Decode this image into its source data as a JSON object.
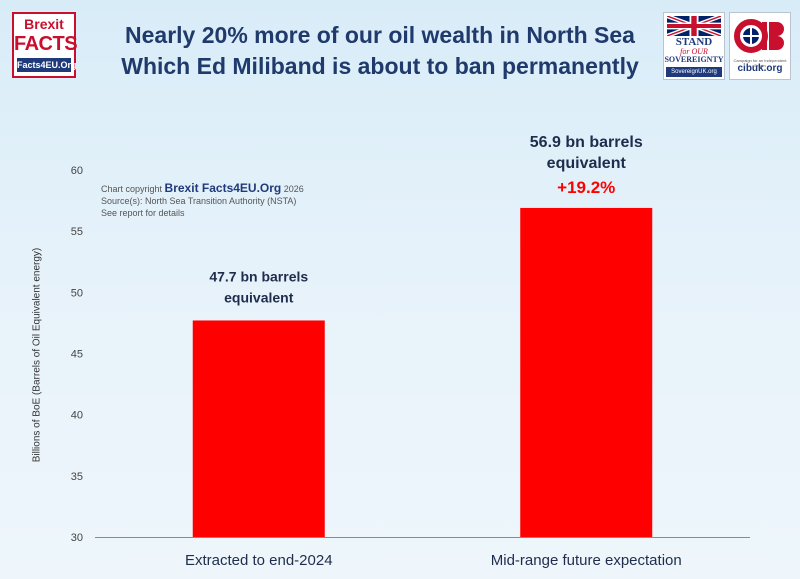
{
  "title": {
    "line1": "Nearly 20% more of our oil wealth in North Sea",
    "line2": "Which Ed Miliband is about to ban permanently"
  },
  "logos": {
    "brexit_facts": {
      "line1": "Brexit",
      "line2": "FACTS",
      "line3": "Facts4EU.Org"
    },
    "stand_for_sovereignty": {
      "line1": "STAND",
      "line2": "for OUR",
      "line3": "SOVEREIGNTY",
      "line4": "SovereignUK.org"
    },
    "cib": {
      "mark": "CIB",
      "tagline": "Campaign for an Independent Britain",
      "site": "cibuk.org"
    }
  },
  "credit": {
    "prefix": "Chart copyright",
    "brand": "Brexit Facts4EU.Org",
    "year": "2026",
    "source": "Source(s): North Sea Transition Authority (NSTA)",
    "note": "See report for details"
  },
  "colors": {
    "bar": "#ff0000",
    "title": "#1f3a6b",
    "data_label": "#1f2d4d",
    "highlight": "#ff0000"
  },
  "chart_data": {
    "type": "bar",
    "title": "Nearly 20% more of our oil wealth in North Sea",
    "xlabel": "",
    "ylabel": "Billions of BoE (Barrels of Oil Equivalent energy)",
    "ylim": [
      30,
      60
    ],
    "yticks": [
      30,
      35,
      40,
      45,
      50,
      55,
      60
    ],
    "categories": [
      "Extracted to end-2024",
      "Mid-range future expectation"
    ],
    "values": [
      47.7,
      56.9
    ],
    "data_labels": [
      [
        "47.7 bn barrels",
        "equivalent"
      ],
      [
        "56.9 bn barrels",
        "equivalent"
      ]
    ],
    "annotation": "+19.2%",
    "grid": false
  }
}
